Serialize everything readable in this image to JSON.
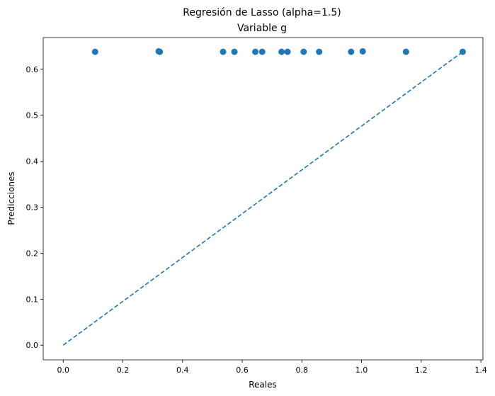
{
  "chart_data": {
    "type": "scatter",
    "title": "Regresión de Lasso (alpha=1.5)",
    "subtitle": "Variable g",
    "xlabel": "Reales",
    "ylabel": "Predicciones",
    "xlim": [
      -0.067,
      1.407
    ],
    "ylim": [
      -0.032,
      0.669
    ],
    "xticks": [
      0.0,
      0.2,
      0.4,
      0.6,
      0.8,
      1.0,
      1.2,
      1.4
    ],
    "xtick_labels": [
      "0.0",
      "0.2",
      "0.4",
      "0.6",
      "0.8",
      "1.0",
      "1.2",
      "1.4"
    ],
    "yticks": [
      0.0,
      0.1,
      0.2,
      0.3,
      0.4,
      0.5,
      0.6
    ],
    "ytick_labels": [
      "0.0",
      "0.1",
      "0.2",
      "0.3",
      "0.4",
      "0.5",
      "0.6"
    ],
    "grid": false,
    "series": [
      {
        "color": "#1f77b4",
        "points": [
          {
            "x": 0.107,
            "y": 0.638
          },
          {
            "x": 0.32,
            "y": 0.639
          },
          {
            "x": 0.324,
            "y": 0.638
          },
          {
            "x": 0.536,
            "y": 0.638
          },
          {
            "x": 0.574,
            "y": 0.638
          },
          {
            "x": 0.644,
            "y": 0.638
          },
          {
            "x": 0.667,
            "y": 0.638
          },
          {
            "x": 0.732,
            "y": 0.638
          },
          {
            "x": 0.752,
            "y": 0.638
          },
          {
            "x": 0.806,
            "y": 0.638
          },
          {
            "x": 0.858,
            "y": 0.638
          },
          {
            "x": 0.965,
            "y": 0.638
          },
          {
            "x": 1.004,
            "y": 0.639
          },
          {
            "x": 1.149,
            "y": 0.638
          },
          {
            "x": 1.339,
            "y": 0.638
          }
        ]
      }
    ],
    "reference_line": {
      "style": "dashed",
      "color": "#1f77b4",
      "from": {
        "x": 0.0,
        "y": 0.0
      },
      "to": {
        "x": 1.339,
        "y": 0.638
      }
    }
  }
}
